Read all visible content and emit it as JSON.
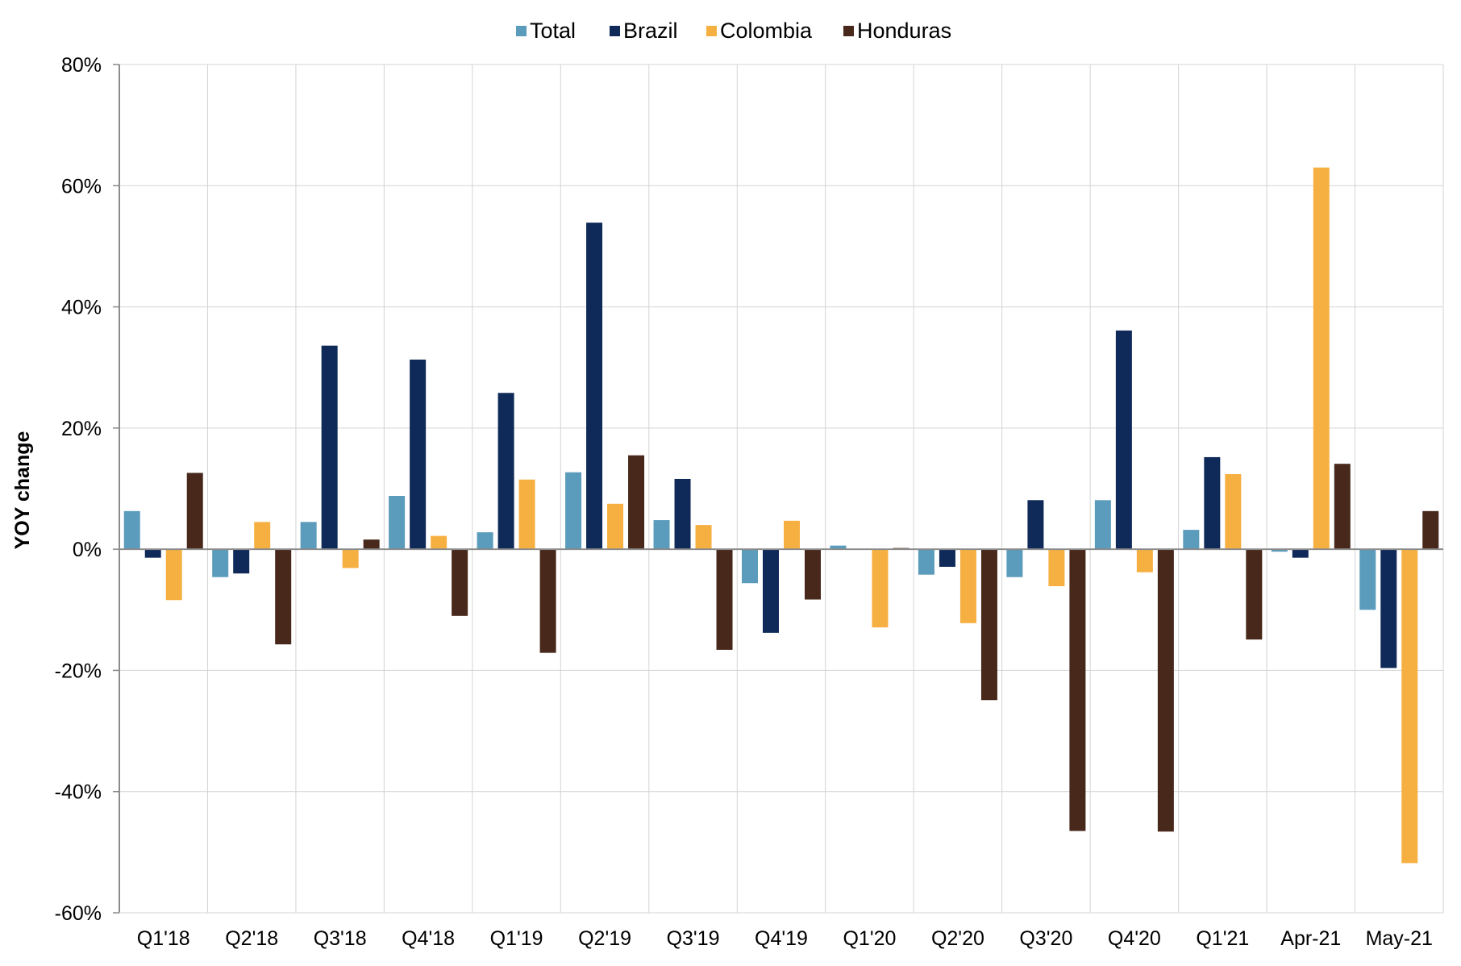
{
  "chart_data": {
    "type": "bar",
    "ylabel": "YOY change",
    "ylim": [
      -60,
      80
    ],
    "y_ticks": [
      80,
      60,
      40,
      20,
      0,
      -20,
      -40,
      -60
    ],
    "y_tick_labels": [
      "80%",
      "60%",
      "40%",
      "20%",
      "0%",
      "-20%",
      "-40%",
      "-60%"
    ],
    "grid": true,
    "legend_position": "top-center",
    "categories": [
      "Q1'18",
      "Q2'18",
      "Q3'18",
      "Q4'18",
      "Q1'19",
      "Q2'19",
      "Q3'19",
      "Q4'19",
      "Q1'20",
      "Q2'20",
      "Q3'20",
      "Q4'20",
      "Q1'21",
      "Apr-21",
      "May-21"
    ],
    "series": [
      {
        "name": "Total",
        "color": "#5b9bbb",
        "values": [
          6.3,
          -4.6,
          4.5,
          8.8,
          2.8,
          12.7,
          4.8,
          -5.6,
          0.6,
          -4.2,
          -4.6,
          8.1,
          3.2,
          -0.4,
          -10.0
        ]
      },
      {
        "name": "Brazil",
        "color": "#0f2a58",
        "values": [
          -1.4,
          -4.0,
          33.6,
          31.3,
          25.8,
          53.9,
          11.6,
          -13.8,
          0.0,
          -2.9,
          8.1,
          36.1,
          15.2,
          -1.4,
          -19.6
        ]
      },
      {
        "name": "Colombia",
        "color": "#f6b042",
        "values": [
          -8.4,
          4.5,
          -3.1,
          2.2,
          11.5,
          7.5,
          4.0,
          4.7,
          -12.9,
          -12.2,
          -6.1,
          -3.8,
          12.4,
          63.0,
          -51.8
        ]
      },
      {
        "name": "Honduras",
        "color": "#47281a",
        "values": [
          12.6,
          -15.7,
          1.6,
          -11.0,
          -17.1,
          15.5,
          -16.6,
          -8.3,
          0.2,
          -24.9,
          -46.5,
          -46.6,
          -14.9,
          14.1,
          6.3
        ]
      }
    ]
  }
}
